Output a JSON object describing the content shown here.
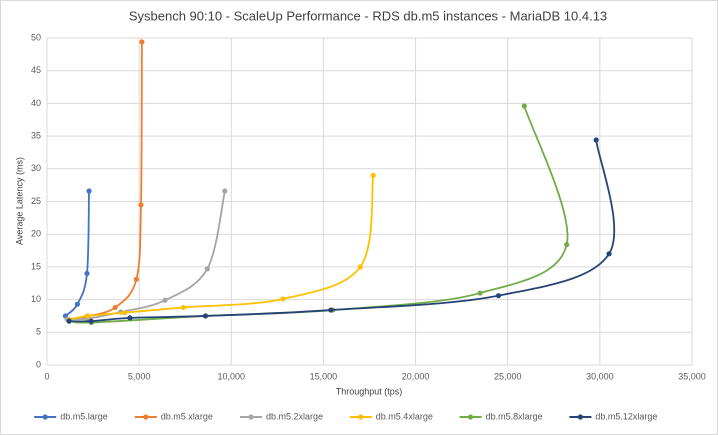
{
  "chart_data": {
    "type": "scatter-smooth",
    "title": "Sysbench 90:10 - ScaleUp Performance - RDS db.m5 instances - MariaDB 10.4.13",
    "x_label": "Throughput (tps)",
    "y_label": "Average Latency (ms)",
    "xlim": [
      0,
      35000
    ],
    "xticks": [
      0,
      {
        "value": 5000,
        "label": "5,000"
      },
      {
        "value": 10000,
        "label": "10,000"
      },
      {
        "value": 15000,
        "label": "15,000"
      },
      {
        "value": 20000,
        "label": "20,000"
      },
      {
        "value": 25000,
        "label": "25,000"
      },
      {
        "value": 30000,
        "label": "30,000"
      },
      {
        "value": 35000,
        "label": "35,000"
      }
    ],
    "ylim": [
      0,
      50
    ],
    "yticks": [
      0,
      5,
      10,
      15,
      20,
      25,
      30,
      35,
      40,
      45,
      50
    ],
    "grid": true,
    "legend": "bottom",
    "series": [
      {
        "name": "db.m5.large",
        "color": "#4472c4",
        "x": [
          1000,
          1650,
          2170,
          2280
        ],
        "values": [
          7.5,
          9.3,
          14,
          26.6
        ]
      },
      {
        "name": "db.m5.xlarge",
        "color": "#ed7d31",
        "x": [
          1100,
          2150,
          3700,
          4850,
          5100,
          5150
        ],
        "values": [
          7.0,
          7.4,
          8.8,
          13.1,
          24.5,
          49.4
        ]
      },
      {
        "name": "db.m5.2xlarge",
        "color": "#a5a5a5",
        "x": [
          1100,
          2200,
          4000,
          6400,
          8700,
          9650
        ],
        "values": [
          7.0,
          7.1,
          8.1,
          9.9,
          14.7,
          26.6
        ]
      },
      {
        "name": "db.m5.4xlarge",
        "color": "#ffc000",
        "x": [
          1200,
          2200,
          4200,
          7400,
          12800,
          17000,
          17700
        ],
        "values": [
          6.9,
          7.5,
          8.0,
          8.8,
          10.1,
          15.0,
          29.0
        ]
      },
      {
        "name": "db.m5.8xlarge",
        "color": "#70ad47",
        "x": [
          1200,
          2400,
          8600,
          15500,
          23500,
          28200,
          25900
        ],
        "values": [
          6.8,
          6.5,
          7.5,
          8.4,
          11.0,
          18.4,
          39.6
        ]
      },
      {
        "name": "db.m5.12xlarge",
        "color": "#264478",
        "x": [
          1200,
          2400,
          4500,
          8600,
          15400,
          24500,
          30500,
          29800
        ],
        "values": [
          6.7,
          6.7,
          7.2,
          7.5,
          8.4,
          10.6,
          17.0,
          34.4
        ]
      }
    ]
  }
}
